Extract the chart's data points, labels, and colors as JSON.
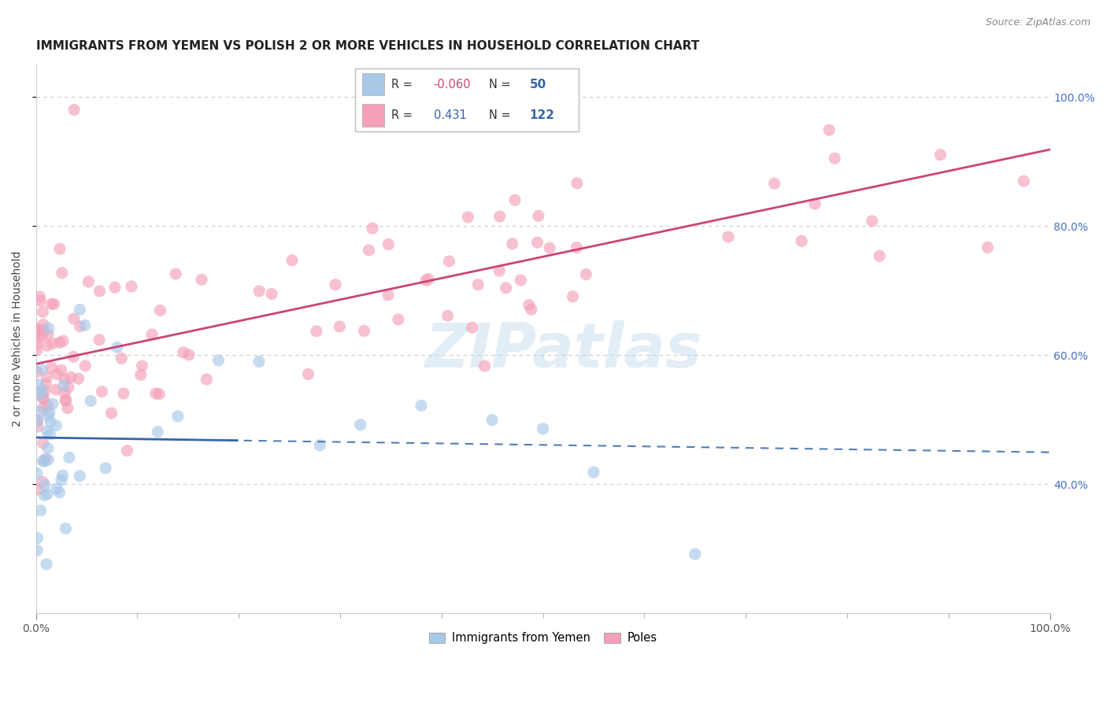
{
  "title": "IMMIGRANTS FROM YEMEN VS POLISH 2 OR MORE VEHICLES IN HOUSEHOLD CORRELATION CHART",
  "source": "Source: ZipAtlas.com",
  "ylabel": "2 or more Vehicles in Household",
  "watermark": "ZIPatlas",
  "legend_label_blue": "Immigrants from Yemen",
  "legend_label_pink": "Poles",
  "r_blue": -0.06,
  "n_blue": 50,
  "r_pink": 0.431,
  "n_pink": 122,
  "blue_color": "#a8c8e8",
  "pink_color": "#f4a0b8",
  "blue_line_color": "#3366aa",
  "pink_line_color": "#cc4477",
  "blue_patch_color": "#a8c8e8",
  "pink_patch_color": "#f4a0b8",
  "xmin": 0.0,
  "xmax": 1.0,
  "ymin": 0.2,
  "ymax": 1.05,
  "ytick_vals": [
    0.4,
    0.6,
    0.8,
    1.0
  ],
  "ytick_labels": [
    "40.0%",
    "60.0%",
    "80.0%",
    "100.0%"
  ],
  "xtick_labels": [
    "0.0%",
    "100.0%"
  ],
  "grid_color": "#cccccc",
  "title_fontsize": 11,
  "source_fontsize": 9,
  "axis_label_fontsize": 10,
  "tick_fontsize": 10
}
